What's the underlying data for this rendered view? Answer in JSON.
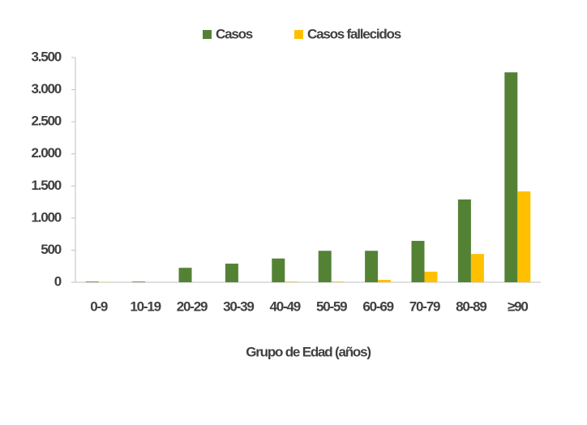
{
  "chart_data": {
    "type": "bar",
    "x_label": "Grupo de Edad (años)",
    "categories": [
      "0-9",
      "10-19",
      "20-29",
      "30-39",
      "40-49",
      "50-59",
      "60-69",
      "70-79",
      "80-89",
      "≥90"
    ],
    "series": [
      {
        "name": "Casos",
        "color": "#548235",
        "values": [
          10,
          10,
          225,
          290,
          370,
          490,
          490,
          645,
          1290,
          3270
        ]
      },
      {
        "name": "Casos fallecidos",
        "color": "#ffc000",
        "values": [
          5,
          0,
          0,
          0,
          10,
          10,
          38,
          165,
          440,
          1415
        ]
      }
    ],
    "ylim": [
      0,
      3500
    ],
    "yticks": [
      0,
      500,
      {
        "value": 1000,
        "label": "1.000"
      },
      {
        "value": 1500,
        "label": "1.500"
      },
      {
        "value": 2000,
        "label": "2.000"
      },
      {
        "value": 2500,
        "label": "2.500"
      },
      {
        "value": 3000,
        "label": "3.000"
      },
      {
        "value": 3500,
        "label": "3.500"
      }
    ],
    "legend": "top"
  }
}
